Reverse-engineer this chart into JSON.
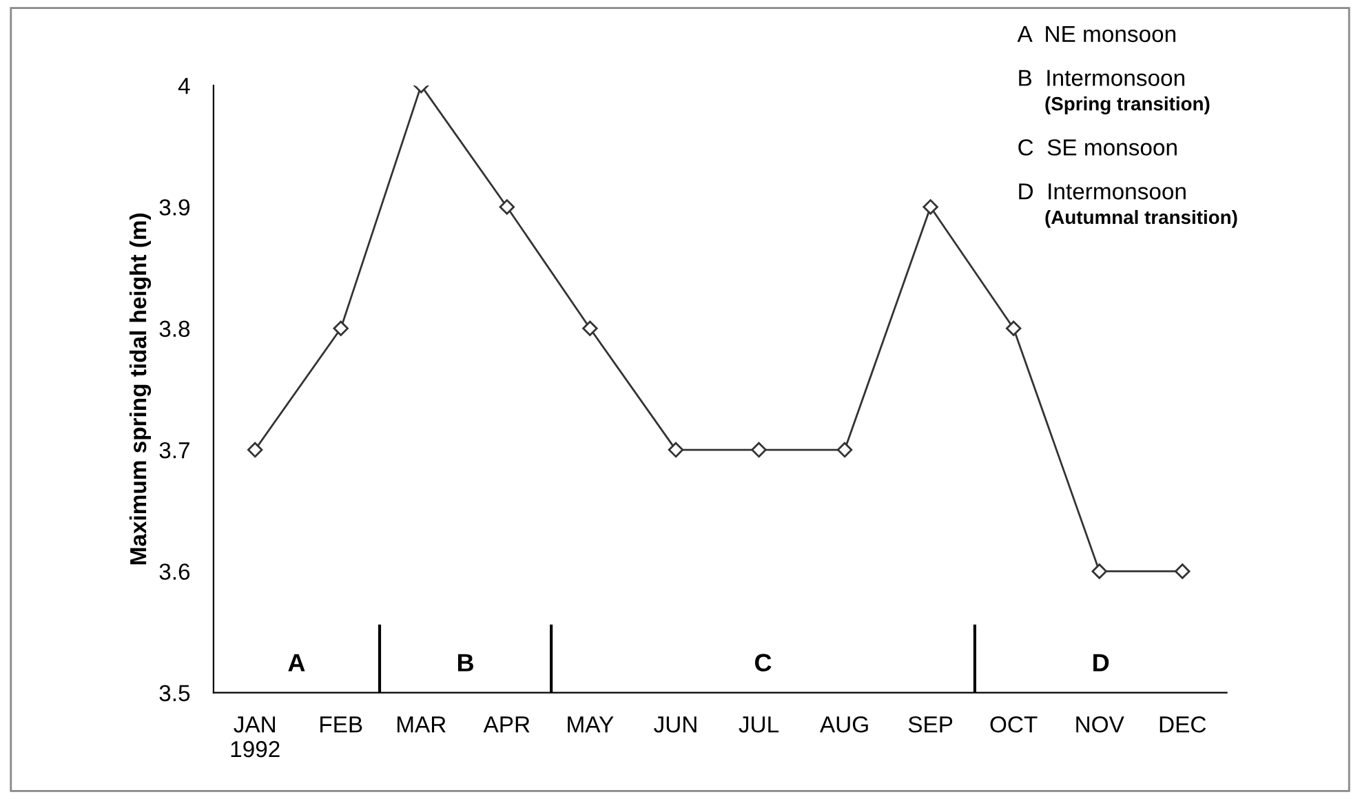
{
  "chart_data": {
    "type": "line",
    "ylabel": "Maximum spring tidal height (m)",
    "x": [
      "1992-01",
      "1992-02",
      "1992-03",
      "1992-04",
      "1992-05",
      "1992-06",
      "1992-07",
      "1992-08",
      "1992-09",
      "1992-10",
      "1992-11",
      "1992-12"
    ],
    "series": [
      {
        "color": "#333333",
        "values": [
          3.7,
          3.8,
          4.0,
          3.9,
          3.8,
          3.7,
          3.7,
          3.7,
          3.9,
          3.8,
          3.6,
          3.6
        ]
      }
    ],
    "marker": "diamond",
    "line_style": "solid",
    "grid": false,
    "xlim": [
      "1991-12-17",
      "1992-12-17"
    ],
    "xticks": [
      {
        "value": "1992-01",
        "label": "JAN\n1992"
      },
      {
        "value": "1992-02",
        "label": "FEB"
      },
      {
        "value": "1992-03",
        "label": "MAR"
      },
      {
        "value": "1992-04",
        "label": "APR"
      },
      {
        "value": "1992-05",
        "label": "MAY"
      },
      {
        "value": "1992-06",
        "label": "JUN"
      },
      {
        "value": "1992-07",
        "label": "JUL"
      },
      {
        "value": "1992-08",
        "label": "AUG"
      },
      {
        "value": "1992-09",
        "label": "SEP"
      },
      {
        "value": "1992-10",
        "label": "OCT"
      },
      {
        "value": "1992-11",
        "label": "NOV"
      },
      {
        "value": "1992-12",
        "label": "DEC"
      }
    ],
    "ylim": [
      3.5,
      4.0
    ],
    "yticks": [
      3.5,
      3.6,
      3.7,
      3.8,
      3.9,
      4
    ],
    "ref_lines": [
      {
        "axis": "x",
        "value": "1992-02-15",
        "color": "#000000"
      },
      {
        "axis": "x",
        "value": "1992-04-17",
        "color": "#000000"
      },
      {
        "axis": "x",
        "value": "1992-09-17",
        "color": "#000000"
      }
    ],
    "annotations": [
      "A",
      "B",
      "C",
      "D",
      "A  NE monsoon",
      "B  Intermonsoon",
      "(Spring transition)",
      "C  SE monsoon",
      "D  Intermonsoon",
      "(Autumnal transition)"
    ]
  }
}
